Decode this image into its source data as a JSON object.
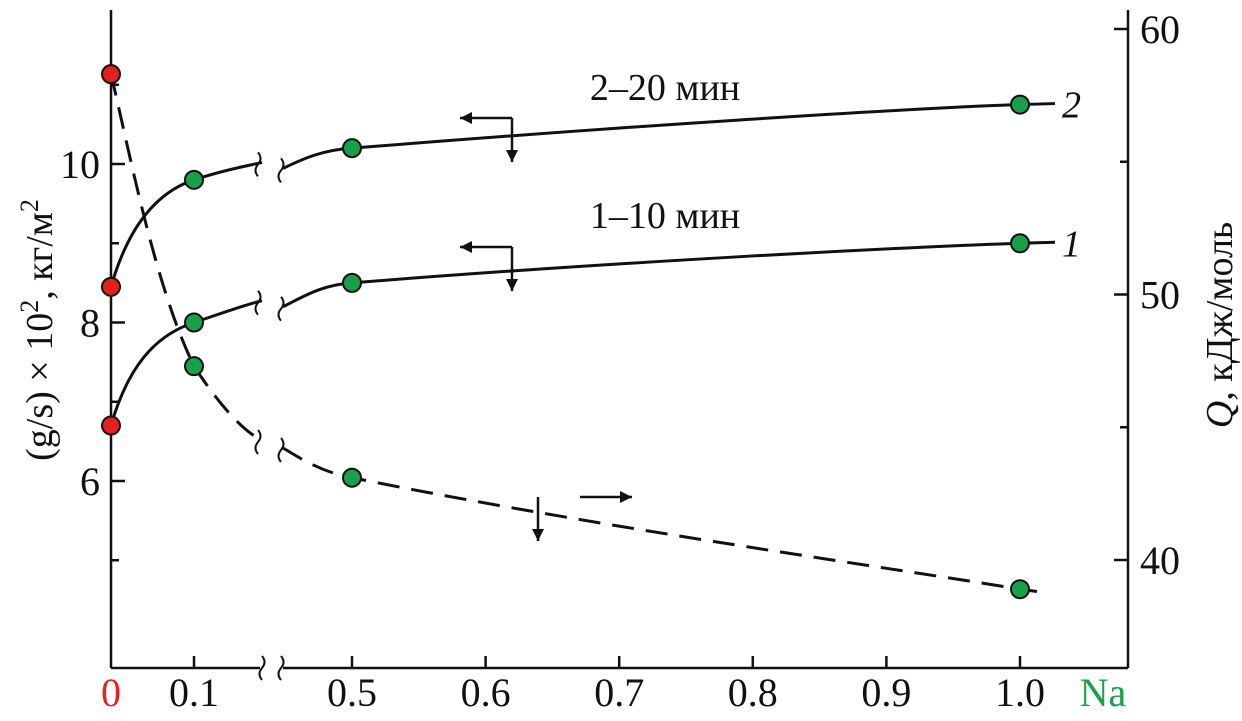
{
  "chart_data": {
    "type": "line",
    "x_label": "Na",
    "x_ticks": [
      "0",
      "0.1",
      "0.5",
      "0.6",
      "0.7",
      "0.8",
      "0.9",
      "1.0"
    ],
    "x_axis_break": "between 0.1 and 0.5",
    "left_axis": {
      "label": "(g/s) × 10², кг/м²",
      "ticks": [
        "6",
        "8",
        "10"
      ],
      "range": [
        4.5,
        12.0
      ]
    },
    "right_axis": {
      "label": "Q, кДж/моль",
      "ticks": [
        "40",
        "50",
        "60"
      ],
      "range": [
        36,
        61
      ]
    },
    "series": [
      {
        "name": "1",
        "axis": "left",
        "style": "solid",
        "annotation": "1–10 мин",
        "x": [
          0,
          0.1,
          0.5,
          1.0
        ],
        "y": [
          6.7,
          8.0,
          8.5,
          9.0
        ]
      },
      {
        "name": "2",
        "axis": "left",
        "style": "solid",
        "annotation": "2–20 мин",
        "x": [
          0,
          0.1,
          0.5,
          1.0
        ],
        "y": [
          8.45,
          9.8,
          10.2,
          10.75
        ]
      },
      {
        "axis": "right",
        "style": "dashed",
        "x": [
          0,
          0.1,
          0.5,
          1.0
        ],
        "y": [
          58.3,
          47.3,
          43.1,
          38.9
        ]
      }
    ],
    "colors": {
      "zero_point": "#e3201c",
      "data_point": "#19a04a",
      "na_label": "#19a04a",
      "zero_label": "#e3201c",
      "line": "#111111"
    },
    "grid": false
  }
}
